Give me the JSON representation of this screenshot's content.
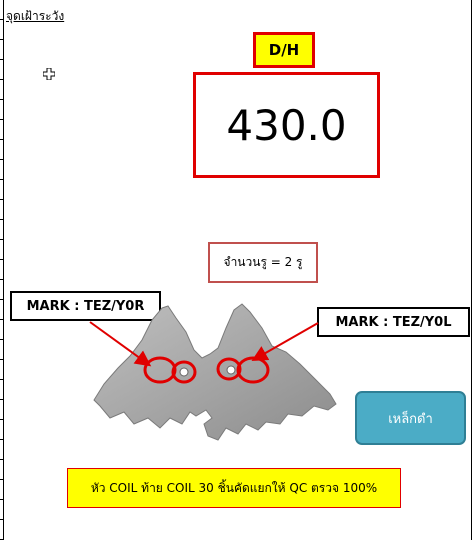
{
  "header": {
    "title": "จุดเฝ้าระวัง"
  },
  "dimension": {
    "label": "D/H",
    "value": "430.0"
  },
  "holes": {
    "text": "จำนวนรู = 2 รู"
  },
  "marks": {
    "left_label": "MARK : TEZ/Y0R",
    "right_label": "MARK : TEZ/Y0L"
  },
  "material": {
    "label": "เหล็กดำ"
  },
  "note": {
    "text": "หัว COIL ท้าย COIL 30 ชิ้นคัดแยกให้ QC ตรวจ 100%"
  },
  "colors": {
    "highlight": "#ffff00",
    "border_red": "#e00000",
    "button_teal": "#4bacc6"
  }
}
